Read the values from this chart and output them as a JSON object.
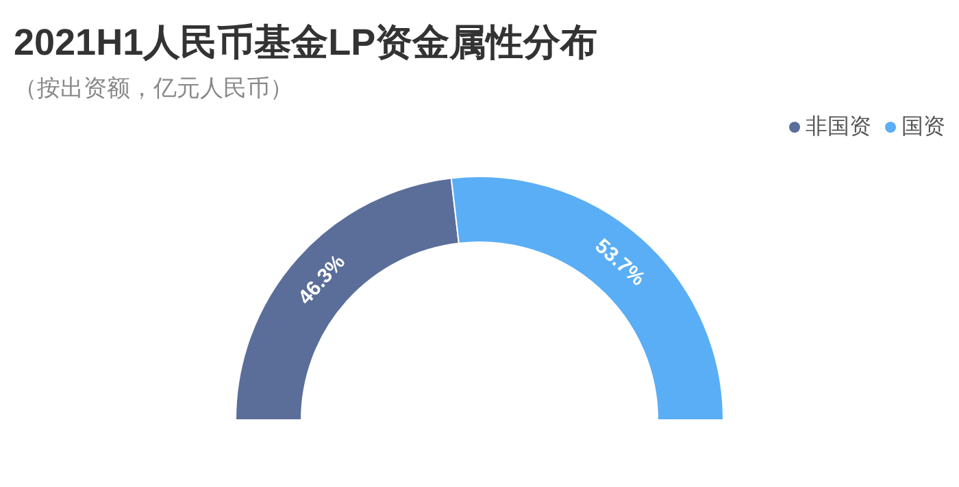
{
  "chart_data": {
    "type": "donut",
    "title": "2021H1人民币基金LP资金属性分布",
    "subtitle": "（按出资额，亿元人民币）",
    "categories": [
      "非国资",
      "国资"
    ],
    "values": [
      46.3,
      53.7
    ],
    "colors": [
      "#5a6e99",
      "#5aaef5"
    ],
    "value_labels": [
      "46.3%",
      "53.7%"
    ],
    "legend": "top right"
  }
}
